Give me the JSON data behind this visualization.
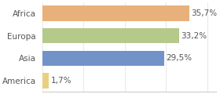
{
  "categories": [
    "America",
    "Asia",
    "Europa",
    "Africa"
  ],
  "values": [
    1.7,
    29.5,
    33.2,
    35.7
  ],
  "labels": [
    "1,7%",
    "29,5%",
    "33,2%",
    "35,7%"
  ],
  "bar_colors": [
    "#e8d080",
    "#7193c8",
    "#b5c98a",
    "#e8b07a"
  ],
  "background_color": "#ffffff",
  "xlim": [
    0,
    42
  ],
  "bar_height": 0.68,
  "label_fontsize": 7.5,
  "ytick_fontsize": 7.5
}
